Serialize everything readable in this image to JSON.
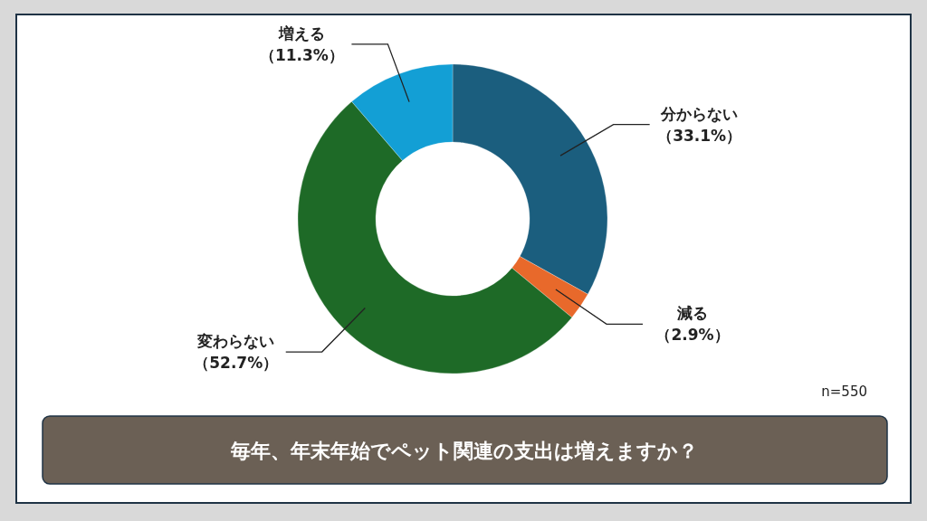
{
  "chart_data": {
    "type": "donut",
    "title": "毎年、年末年始でペット関連の支出は増えますか？",
    "categories": [
      "分からない",
      "減る",
      "変わらない",
      "増える"
    ],
    "values": [
      33.1,
      2.9,
      52.7,
      11.3
    ],
    "colors": [
      "#1b5e7e",
      "#e8692b",
      "#1e6a27",
      "#139fd5"
    ],
    "value_labels": [
      "（33.1%）",
      "（2.9%）",
      "（52.7%）",
      "（11.3%）"
    ],
    "annotations": [
      "n=550"
    ]
  }
}
